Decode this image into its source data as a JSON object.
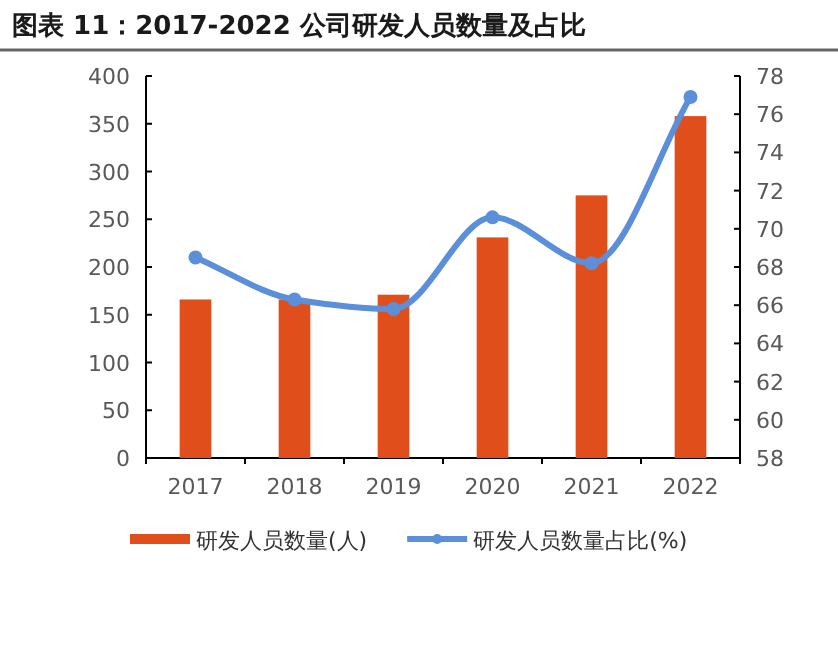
{
  "chart_data": {
    "type": "bar",
    "title": "图表 11：2017-2022 公司研发人员数量及占比",
    "categories": [
      "2017",
      "2018",
      "2019",
      "2020",
      "2021",
      "2022"
    ],
    "series": [
      {
        "name": "研发人员数量(人)",
        "color": "#e04e1c",
        "values": [
          166,
          166,
          171,
          231,
          275,
          358
        ]
      },
      {
        "name": "研发人员数量占比(%)",
        "type": "line",
        "axis": "y2",
        "color": "#5b8fd9",
        "marker": "circle",
        "values": [
          68.5,
          66.3,
          65.8,
          70.6,
          68.2,
          76.9
        ]
      }
    ],
    "ylim": [
      0,
      400
    ],
    "yticks": [
      0,
      50,
      100,
      150,
      200,
      250,
      300,
      350,
      400
    ],
    "y2lim": [
      58,
      78
    ],
    "y2ticks": [
      58,
      60,
      62,
      64,
      66,
      68,
      70,
      72,
      74,
      76,
      78
    ],
    "legend": "bottom",
    "grid": false
  }
}
